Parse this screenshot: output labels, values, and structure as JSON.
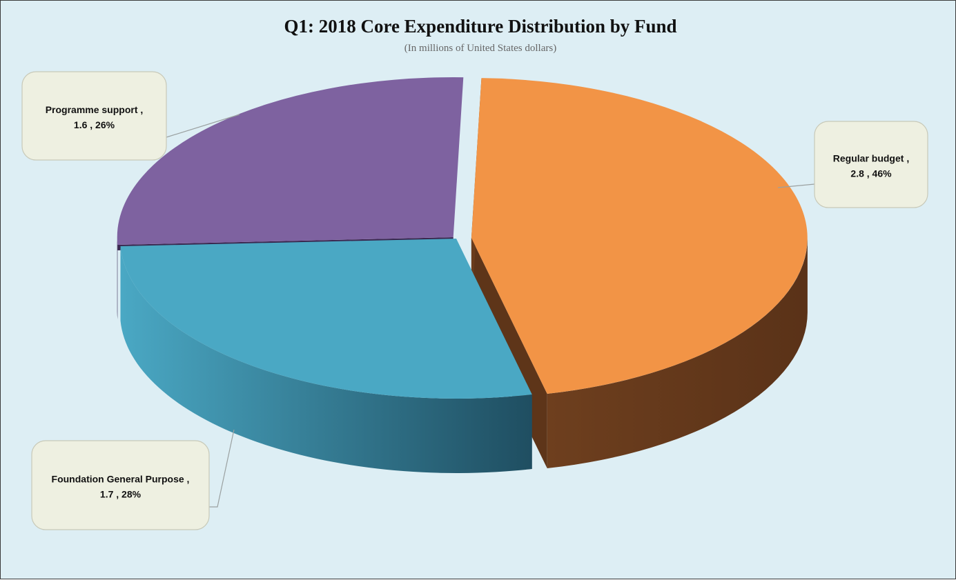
{
  "chart_data": {
    "type": "pie",
    "title": "Q1: 2018 Core Expenditure Distribution by Fund",
    "subtitle": "(In millions of United States dollars)",
    "slices": [
      {
        "label": "Regular budget",
        "value": 2.8,
        "percent": "46%",
        "color": "#f29446",
        "side": "#663a1c"
      },
      {
        "label": "Foundation General Purpose",
        "value": 1.7,
        "percent": "28%",
        "color": "#4aa8c4",
        "side": "#2d7890"
      },
      {
        "label": "Programme support",
        "value": 1.6,
        "percent": "26%",
        "color": "#7e62a0",
        "side": "#3f2e55"
      }
    ],
    "legend": "none"
  }
}
